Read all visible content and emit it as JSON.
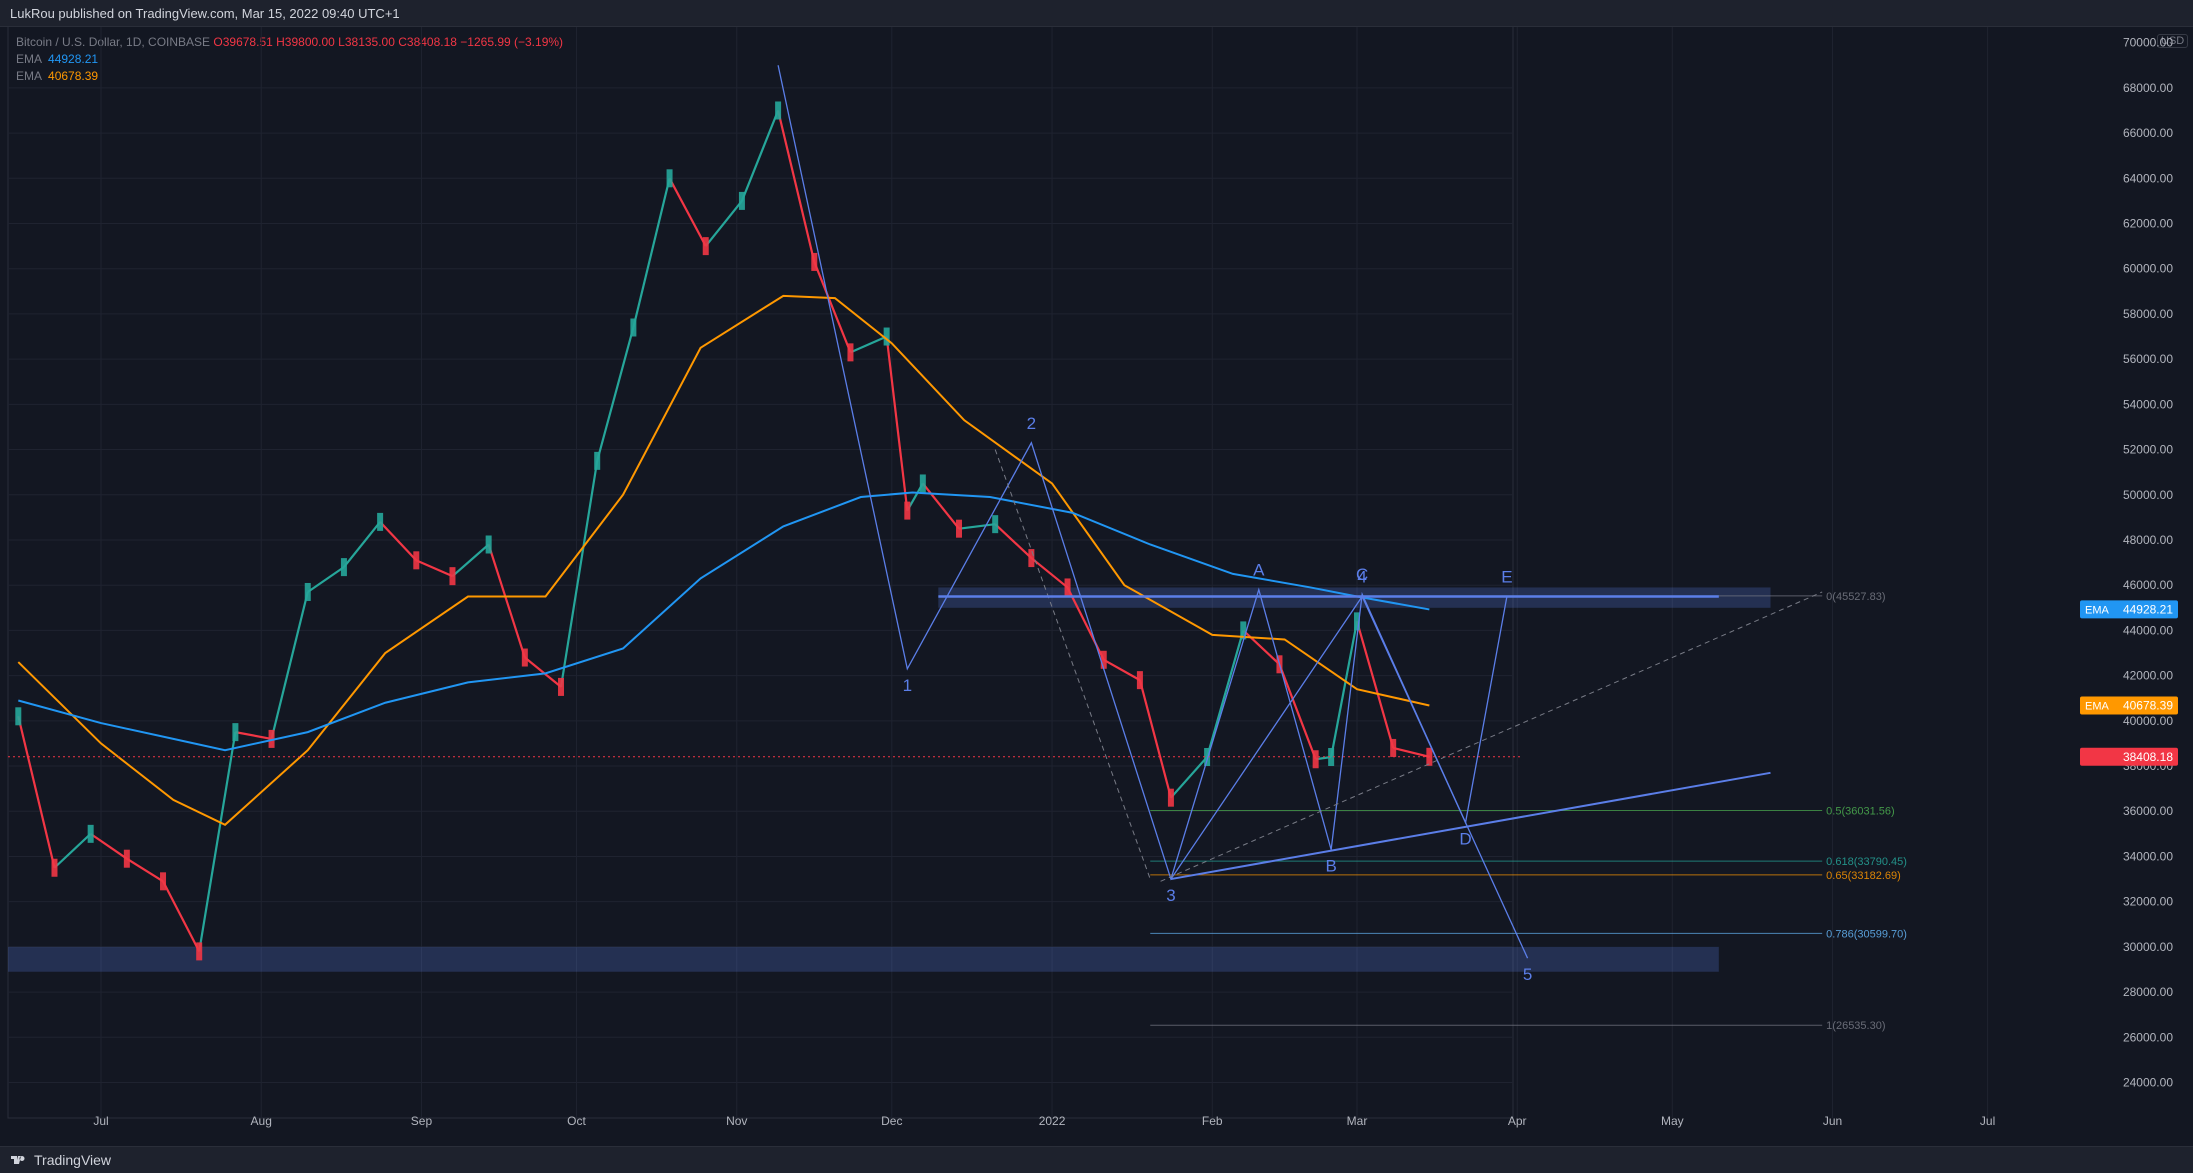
{
  "header": {
    "published": "LukRou published on TradingView.com, Mar 15, 2022 09:40 UTC+1"
  },
  "legend": {
    "symbol": "Bitcoin / U.S. Dollar, 1D, COINBASE",
    "ohlc": "O39678.51  H39800.00  L38135.00  C38408.18  −1265.99 (−3.19%)",
    "ema_label": "EMA",
    "ema1_value": "44928.21",
    "ema2_value": "40678.39"
  },
  "currency": "USD",
  "footer": {
    "brand": "TradingView"
  },
  "colors": {
    "bg": "#131722",
    "up": "#26a69a",
    "down": "#f23645",
    "ema_fast": "#ff9800",
    "ema_slow": "#2196f3",
    "drawing": "#5b7ee8"
  },
  "chart_data": {
    "type": "line",
    "title": "Bitcoin / U.S. Dollar, 1D, COINBASE",
    "xlabel": "",
    "ylabel": "",
    "ylim": [
      23000,
      70000
    ],
    "x_tick_labels": [
      "Jul",
      "Aug",
      "Sep",
      "Oct",
      "Nov",
      "Dec",
      "2022",
      "Feb",
      "Mar",
      "Apr",
      "May",
      "Jun",
      "Jul"
    ],
    "y_tick_labels": [
      "24000.00",
      "26000.00",
      "28000.00",
      "30000.00",
      "32000.00",
      "34000.00",
      "36000.00",
      "38000.00",
      "40000.00",
      "42000.00",
      "44000.00",
      "46000.00",
      "48000.00",
      "50000.00",
      "52000.00",
      "54000.00",
      "56000.00",
      "58000.00",
      "60000.00",
      "62000.00",
      "64000.00",
      "66000.00",
      "68000.00"
    ],
    "y_top_label": "70000.00",
    "price_series": {
      "name": "BTCUSD close (approx.)",
      "x": [
        "2021-06-15",
        "2021-06-22",
        "2021-06-29",
        "2021-07-06",
        "2021-07-13",
        "2021-07-20",
        "2021-07-27",
        "2021-08-03",
        "2021-08-10",
        "2021-08-17",
        "2021-08-24",
        "2021-08-31",
        "2021-09-07",
        "2021-09-14",
        "2021-09-21",
        "2021-09-28",
        "2021-10-05",
        "2021-10-12",
        "2021-10-19",
        "2021-10-26",
        "2021-11-02",
        "2021-11-09",
        "2021-11-16",
        "2021-11-23",
        "2021-11-30",
        "2021-12-04",
        "2021-12-07",
        "2021-12-14",
        "2021-12-21",
        "2021-12-28",
        "2022-01-04",
        "2022-01-11",
        "2022-01-18",
        "2022-01-24",
        "2022-01-31",
        "2022-02-07",
        "2022-02-14",
        "2022-02-21",
        "2022-02-24",
        "2022-03-01",
        "2022-03-08",
        "2022-03-15"
      ],
      "y": [
        40200,
        33500,
        35000,
        33900,
        32900,
        29800,
        39500,
        39200,
        45700,
        46800,
        48800,
        47100,
        46400,
        47800,
        42800,
        41500,
        51500,
        57400,
        64000,
        61000,
        63000,
        67000,
        60300,
        56300,
        57000,
        49300,
        50500,
        48500,
        48700,
        47200,
        45900,
        42700,
        41800,
        36600,
        38400,
        44000,
        42500,
        38300,
        38400,
        44400,
        38800,
        38408
      ]
    },
    "ema_fast": {
      "name": "EMA",
      "last_value": 40678.39,
      "x": [
        "2021-06-15",
        "2021-07-01",
        "2021-07-15",
        "2021-07-25",
        "2021-08-10",
        "2021-08-25",
        "2021-09-10",
        "2021-09-25",
        "2021-10-10",
        "2021-10-25",
        "2021-11-10",
        "2021-11-20",
        "2021-12-01",
        "2021-12-15",
        "2022-01-01",
        "2022-01-15",
        "2022-02-01",
        "2022-02-15",
        "2022-03-01",
        "2022-03-15"
      ],
      "y": [
        42600,
        39000,
        36500,
        35400,
        38700,
        43000,
        45500,
        45500,
        50000,
        56500,
        58800,
        58700,
        56700,
        53300,
        50500,
        46000,
        43800,
        43600,
        41400,
        40678
      ]
    },
    "ema_slow": {
      "name": "EMA",
      "last_value": 44928.21,
      "x": [
        "2021-06-15",
        "2021-07-01",
        "2021-07-15",
        "2021-07-25",
        "2021-08-10",
        "2021-08-25",
        "2021-09-10",
        "2021-09-25",
        "2021-10-10",
        "2021-10-25",
        "2021-11-10",
        "2021-11-25",
        "2021-12-05",
        "2021-12-20",
        "2022-01-05",
        "2022-01-20",
        "2022-02-05",
        "2022-02-20",
        "2022-03-01",
        "2022-03-15"
      ],
      "y": [
        40900,
        39900,
        39200,
        38700,
        39500,
        40800,
        41700,
        42100,
        43200,
        46300,
        48600,
        49900,
        50100,
        49900,
        49200,
        47800,
        46500,
        45900,
        45500,
        44928
      ]
    },
    "last_price": 38408.18,
    "fibonacci_levels": [
      {
        "label": "0(45527.83)",
        "value": 45527.83
      },
      {
        "label": "0.5(36031.56)",
        "value": 36031.56
      },
      {
        "label": "0.618(33790.45)",
        "value": 33790.45
      },
      {
        "label": "0.65(33182.69)",
        "value": 33182.69
      },
      {
        "label": "0.786(30599.70)",
        "value": 30599.7
      },
      {
        "label": "1(26535.30)",
        "value": 26535.3
      }
    ],
    "wave_points": [
      {
        "label": "1",
        "x": "2021-12-04",
        "y": 42300
      },
      {
        "label": "2",
        "x": "2021-12-28",
        "y": 52300
      },
      {
        "label": "3",
        "x": "2022-01-24",
        "y": 33000
      },
      {
        "label": "4",
        "x": "2022-03-02",
        "y": 45500
      },
      {
        "label": "5",
        "x": "2022-04-03",
        "y": 29500
      }
    ],
    "triangle_points": [
      {
        "label": "A",
        "x": "2022-02-10",
        "y": 45800
      },
      {
        "label": "B",
        "x": "2022-02-24",
        "y": 34300
      },
      {
        "label": "C",
        "x": "2022-03-02",
        "y": 45600
      },
      {
        "label": "D",
        "x": "2022-03-22",
        "y": 35500
      },
      {
        "label": "E",
        "x": "2022-03-30",
        "y": 45500
      }
    ],
    "supply_zone": [
      45000,
      45900
    ],
    "demand_zone": [
      28900,
      30000
    ]
  }
}
